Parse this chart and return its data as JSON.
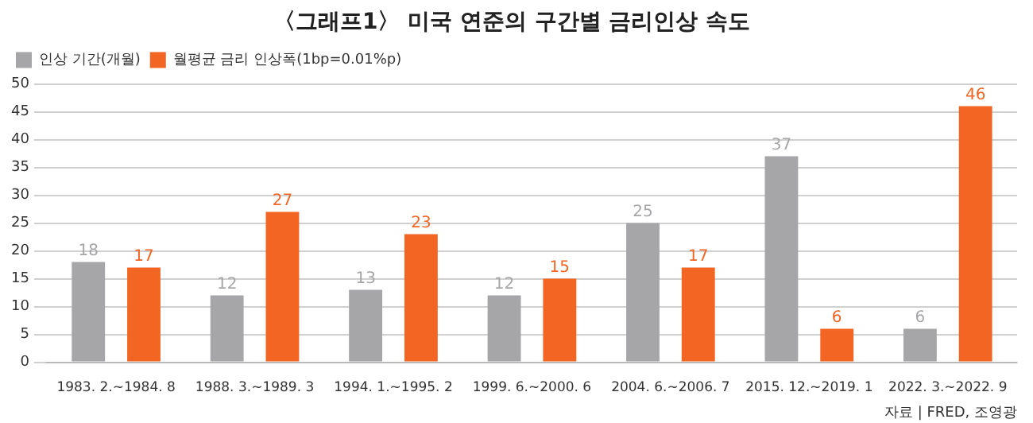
{
  "chart_data": {
    "type": "bar",
    "title": "〈그래프1〉 미국 연준의 구간별 금리인상 속도",
    "categories": [
      "1983. 2.~1984. 8",
      "1988. 3.~1989. 3",
      "1994. 1.~1995. 2",
      "1999. 6.~2000. 6",
      "2004. 6.~2006. 7",
      "2015. 12.~2019. 1",
      "2022. 3.~2022. 9"
    ],
    "series": [
      {
        "name": "인상 기간(개월)",
        "color": "#a6a6a8",
        "values": [
          18,
          12,
          13,
          12,
          25,
          37,
          6
        ]
      },
      {
        "name": "월평균 금리 인상폭(1bp=0.01%p)",
        "color": "#f26522",
        "values": [
          17,
          27,
          23,
          15,
          17,
          6,
          46
        ]
      }
    ],
    "ylim": [
      0,
      50
    ],
    "yticks": [
      0,
      5,
      10,
      15,
      20,
      25,
      30,
      35,
      40,
      45,
      50
    ],
    "grid": "y",
    "legend": "top left",
    "data_labels": true,
    "annotations": [
      "자료 | FRED, 조영광"
    ]
  }
}
